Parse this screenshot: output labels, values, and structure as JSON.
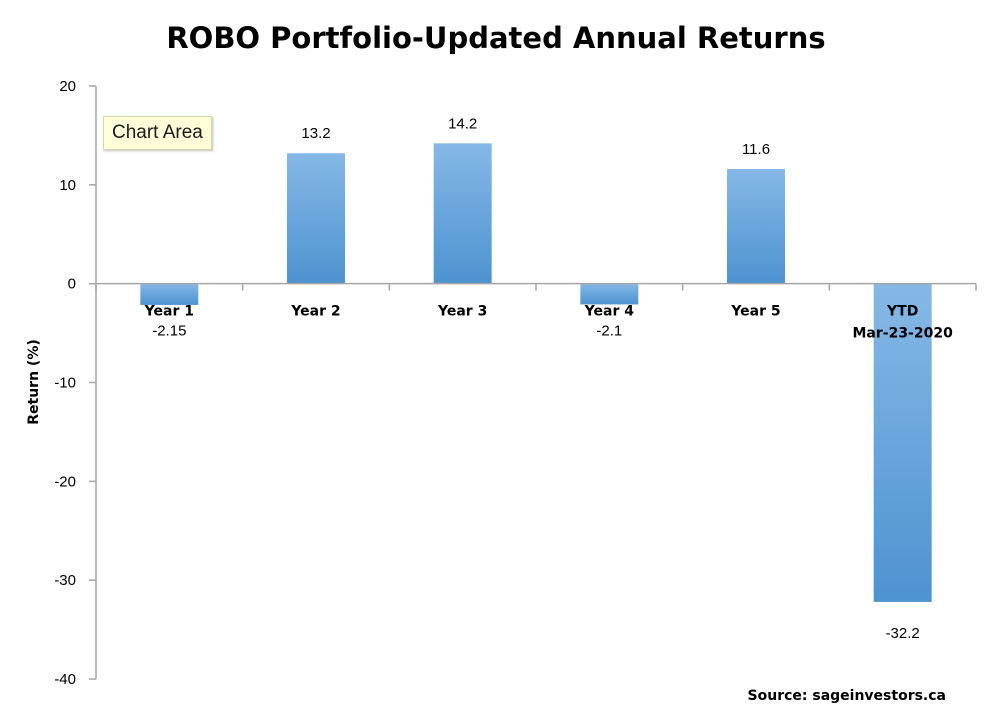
{
  "tooltip": {
    "label": "Chart Area"
  },
  "source": {
    "label": "Source: sageinvestors.ca"
  },
  "colors": {
    "bar_light": "#86b8e6",
    "bar_dark": "#4d93d0",
    "axis": "#a6a6a6",
    "text": "#000000"
  },
  "chart_data": {
    "type": "bar",
    "title": "ROBO Portfolio-Updated Annual Returns",
    "xlabel": "",
    "ylabel": "Return (%)",
    "ylim": [
      -40,
      20
    ],
    "yticks": [
      20,
      10,
      0,
      -10,
      -20,
      -30,
      -40
    ],
    "ytick_labels": [
      "20",
      "10",
      "0",
      "-10",
      "-20",
      "-30",
      "-40"
    ],
    "grid": false,
    "legend": "none",
    "categories": [
      [
        "Year 1"
      ],
      [
        "Year 2"
      ],
      [
        "Year 3"
      ],
      [
        "Year 4"
      ],
      [
        "Year 5"
      ],
      [
        "YTD",
        "Mar-23-2020"
      ]
    ],
    "values": [
      -2.15,
      13.2,
      14.2,
      -2.1,
      11.6,
      -32.2
    ],
    "data_labels": [
      "-2.15",
      "13.2",
      "14.2",
      "-2.1",
      "11.6",
      "-32.2"
    ]
  }
}
